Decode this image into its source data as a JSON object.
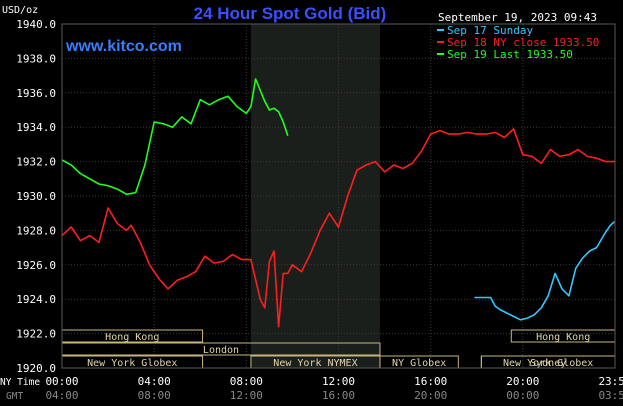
{
  "chart_data": {
    "type": "line",
    "title": "24 Hour Spot Gold (Bid)",
    "ylabel": "USD/oz",
    "watermark": "www.kitco.com",
    "header_date": "September 19, 2023 09:43",
    "ylim": [
      1920,
      1940
    ],
    "yticks": [
      "1920.0",
      "1922.0",
      "1924.0",
      "1926.0",
      "1928.0",
      "1930.0",
      "1932.0",
      "1934.0",
      "1936.0",
      "1938.0",
      "1940.0"
    ],
    "xlim": [
      0,
      24
    ],
    "xticks_ny": [
      "00:00",
      "04:00",
      "08:00",
      "12:00",
      "16:00",
      "20:00",
      "23:59"
    ],
    "xticks_gmt": [
      "04:00",
      "08:00",
      "12:00",
      "16:00",
      "20:00",
      "00:00",
      "03:59"
    ],
    "xaxis_row_labels": {
      "ny": "NY Time",
      "gmt": "GMT"
    },
    "market_hours": [
      {
        "name": "Hong Kong",
        "row": 0,
        "ranges": [
          [
            0,
            6.1
          ],
          [
            19.5,
            24
          ]
        ]
      },
      {
        "name": "London",
        "row": 1,
        "ranges": [
          [
            0,
            13.8
          ]
        ]
      },
      {
        "name": "Sydney",
        "row": 2,
        "ranges": [
          [
            18.2,
            24
          ]
        ]
      },
      {
        "name": "New York Globex",
        "row": 3,
        "ranges": [
          [
            0,
            6.1
          ],
          [
            18.2,
            24
          ]
        ]
      },
      {
        "name": "New York NYMEX",
        "row": 3,
        "ranges": [
          [
            8.2,
            13.8
          ]
        ]
      },
      {
        "name": "NY Globex",
        "row": 3,
        "ranges": [
          [
            13.8,
            17.2
          ]
        ]
      }
    ],
    "shaded_region": [
      8.2,
      13.8
    ],
    "legend": [
      {
        "label": "Sep 17 Sunday",
        "color": "#33c6ff"
      },
      {
        "label": "Sep 18 NY close 1933.50",
        "color": "#ff1e1e"
      },
      {
        "label": "Sep 19 Last 1933.50",
        "color": "#1eff1e"
      }
    ],
    "series": [
      {
        "color": "#ff1e1e",
        "x": [
          0,
          0.4,
          0.8,
          1.2,
          1.6,
          2.0,
          2.4,
          2.8,
          3.0,
          3.4,
          3.8,
          4.2,
          4.6,
          5.0,
          5.4,
          5.8,
          6.2,
          6.6,
          7.0,
          7.4,
          7.8,
          8.2,
          8.6,
          8.8,
          9.0,
          9.2,
          9.4,
          9.6,
          9.8,
          10.0,
          10.4,
          10.8,
          11.2,
          11.6,
          12.0,
          12.4,
          12.8,
          13.2,
          13.6,
          14.0,
          14.4,
          14.8,
          15.2,
          15.6,
          16.0,
          16.4,
          16.8,
          17.2,
          17.6,
          18.0,
          18.4,
          18.8,
          19.2,
          19.6,
          20.0,
          20.4,
          20.8,
          21.2,
          21.6,
          22.0,
          22.4,
          22.8,
          23.2,
          23.6,
          23.98
        ],
        "values": [
          1927.7,
          1928.2,
          1927.4,
          1927.7,
          1927.3,
          1929.3,
          1928.4,
          1928.0,
          1928.3,
          1927.3,
          1926.0,
          1925.2,
          1924.6,
          1925.1,
          1925.3,
          1925.6,
          1926.5,
          1926.1,
          1926.2,
          1926.6,
          1926.3,
          1926.3,
          1924.0,
          1923.5,
          1926.2,
          1926.8,
          1922.4,
          1925.5,
          1925.5,
          1926.0,
          1925.6,
          1926.7,
          1928.0,
          1929.0,
          1928.2,
          1930.0,
          1931.5,
          1931.8,
          1932.0,
          1931.4,
          1931.8,
          1931.6,
          1931.9,
          1932.6,
          1933.6,
          1933.8,
          1933.6,
          1933.6,
          1933.7,
          1933.6,
          1933.6,
          1933.7,
          1933.4,
          1933.9,
          1932.4,
          1932.3,
          1931.9,
          1932.7,
          1932.3,
          1932.4,
          1932.7,
          1932.3,
          1932.2,
          1932.0,
          1932.0
        ]
      },
      {
        "color": "#1eff1e",
        "x": [
          0,
          0.4,
          0.8,
          1.2,
          1.6,
          2.0,
          2.4,
          2.8,
          3.2,
          3.6,
          4.0,
          4.4,
          4.8,
          5.2,
          5.6,
          6.0,
          6.4,
          6.8,
          7.2,
          7.6,
          8.0,
          8.2,
          8.4,
          8.8,
          9.0,
          9.2,
          9.4,
          9.6,
          9.8
        ],
        "values": [
          1932.1,
          1931.8,
          1931.3,
          1931.0,
          1930.7,
          1930.6,
          1930.4,
          1930.1,
          1930.2,
          1931.8,
          1934.3,
          1934.2,
          1934.0,
          1934.6,
          1934.2,
          1935.6,
          1935.3,
          1935.6,
          1935.8,
          1935.2,
          1934.8,
          1935.2,
          1936.8,
          1935.5,
          1935.0,
          1935.1,
          1934.9,
          1934.3,
          1933.5
        ]
      },
      {
        "color": "#33c6ff",
        "x": [
          17.9,
          18.2,
          18.6,
          18.8,
          19.0,
          19.3,
          19.6,
          19.9,
          20.2,
          20.5,
          20.8,
          21.1,
          21.4,
          21.7,
          22.0,
          22.3,
          22.6,
          22.9,
          23.2,
          23.5,
          23.8,
          23.98
        ],
        "values": [
          1924.1,
          1924.1,
          1924.1,
          1923.6,
          1923.4,
          1923.2,
          1923.0,
          1922.8,
          1922.9,
          1923.1,
          1923.5,
          1924.2,
          1925.5,
          1924.6,
          1924.2,
          1925.8,
          1926.4,
          1926.8,
          1927.0,
          1927.7,
          1928.3,
          1928.5
        ]
      }
    ]
  }
}
